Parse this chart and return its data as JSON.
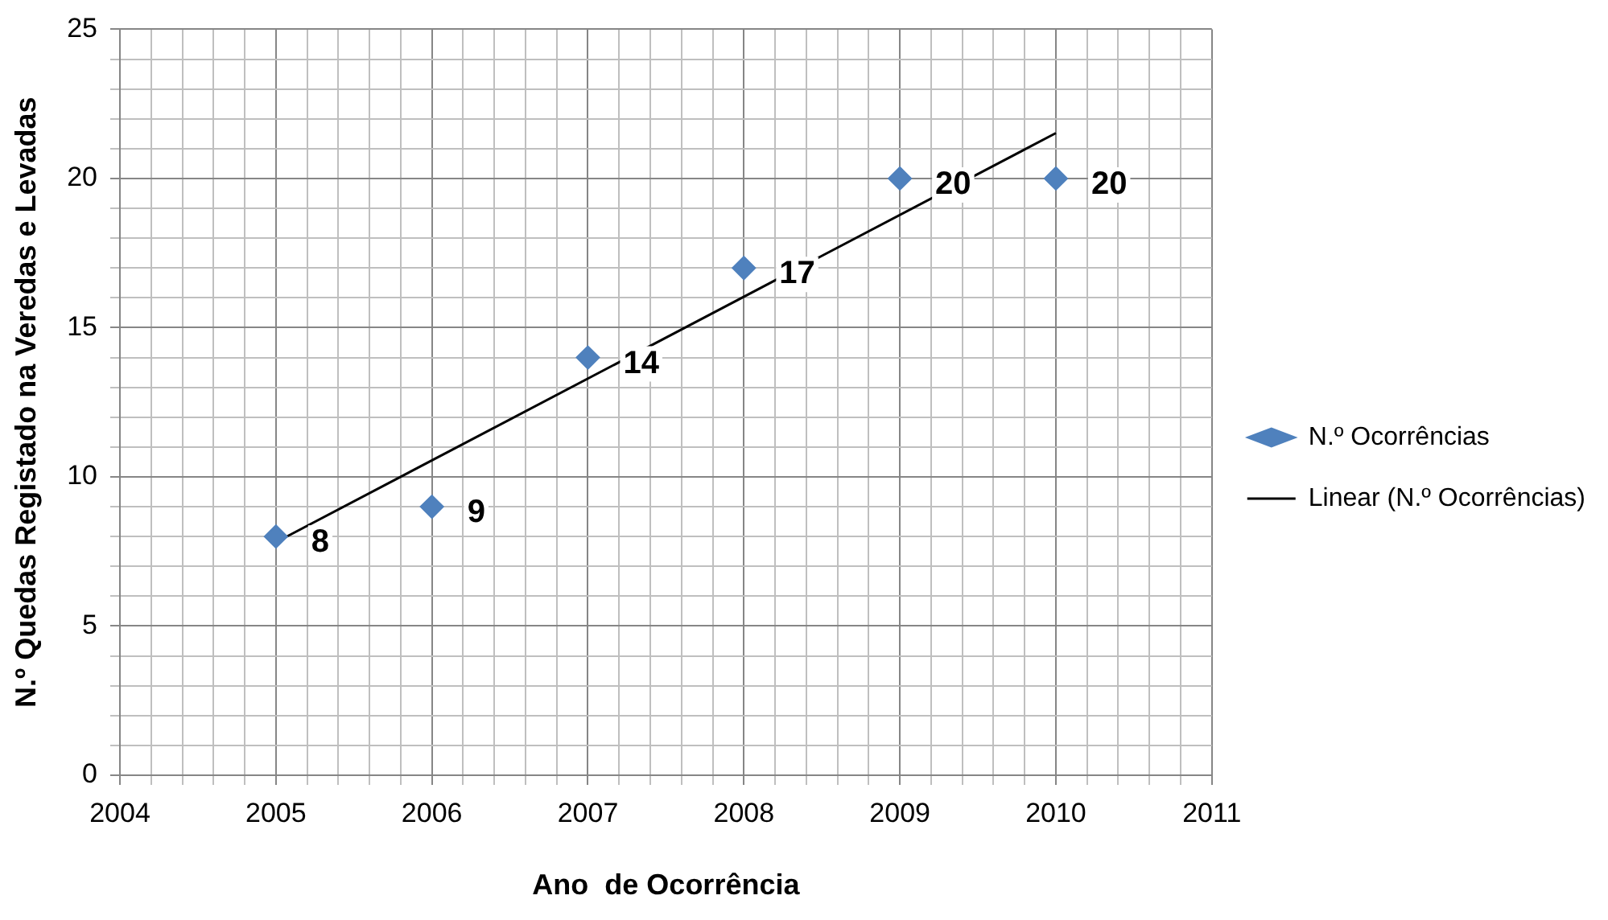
{
  "chart_data": {
    "type": "scatter",
    "xlabel": "Ano  de Ocorrência",
    "ylabel": "N.º Quedas Registado na Veredas e Levadas",
    "xlim": [
      2004,
      2011
    ],
    "xticks": [
      2004,
      {
        "value": 2004.2,
        "label": null
      },
      {
        "value": 2004.4,
        "label": null
      },
      {
        "value": 2004.6,
        "label": null
      },
      {
        "value": 2004.8,
        "label": null
      },
      2005,
      {
        "value": 2005.2,
        "label": null
      },
      {
        "value": 2005.4,
        "label": null
      },
      {
        "value": 2005.6,
        "label": null
      },
      {
        "value": 2005.8,
        "label": null
      },
      2006,
      {
        "value": 2006.2,
        "label": null
      },
      {
        "value": 2006.4,
        "label": null
      },
      {
        "value": 2006.6,
        "label": null
      },
      {
        "value": 2006.8,
        "label": null
      },
      2007,
      {
        "value": 2007.2,
        "label": null
      },
      {
        "value": 2007.4,
        "label": null
      },
      {
        "value": 2007.6,
        "label": null
      },
      {
        "value": 2007.8,
        "label": null
      },
      2008,
      {
        "value": 2008.2,
        "label": null
      },
      {
        "value": 2008.4,
        "label": null
      },
      {
        "value": 2008.6,
        "label": null
      },
      {
        "value": 2008.8,
        "label": null
      },
      2009,
      {
        "value": 2009.2,
        "label": null
      },
      {
        "value": 2009.4,
        "label": null
      },
      {
        "value": 2009.6,
        "label": null
      },
      {
        "value": 2009.8,
        "label": null
      },
      2010,
      {
        "value": 2010.2,
        "label": null
      },
      {
        "value": 2010.4,
        "label": null
      },
      {
        "value": 2010.6,
        "label": null
      },
      {
        "value": 2010.8,
        "label": null
      },
      2011
    ],
    "ylim": [
      0,
      25
    ],
    "yticks": [
      0,
      {
        "value": 1,
        "label": null
      },
      {
        "value": 2,
        "label": null
      },
      {
        "value": 3,
        "label": null
      },
      {
        "value": 4,
        "label": null
      },
      5,
      {
        "value": 6,
        "label": null
      },
      {
        "value": 7,
        "label": null
      },
      {
        "value": 8,
        "label": null
      },
      {
        "value": 9,
        "label": null
      },
      10,
      {
        "value": 11,
        "label": null
      },
      {
        "value": 12,
        "label": null
      },
      {
        "value": 13,
        "label": null
      },
      {
        "value": 14,
        "label": null
      },
      15,
      {
        "value": 16,
        "label": null
      },
      {
        "value": 17,
        "label": null
      },
      {
        "value": 18,
        "label": null
      },
      {
        "value": 19,
        "label": null
      },
      20,
      {
        "value": 21,
        "label": null
      },
      {
        "value": 22,
        "label": null
      },
      {
        "value": 23,
        "label": null
      },
      {
        "value": 24,
        "label": null
      },
      25
    ],
    "grid": true,
    "legend": "right",
    "marker": "diamond",
    "series": [
      {
        "name": "N.º Ocorrências",
        "color": "#4f81bd",
        "x": [
          2005,
          2006,
          2007,
          2008,
          2009,
          2010
        ],
        "values": [
          8,
          9,
          14,
          17,
          20,
          20
        ],
        "value_labels": [
          "8",
          "9",
          "14",
          "17",
          "20",
          "20"
        ]
      },
      {
        "type": "line",
        "name": "Linear (N.º Ocorrências)",
        "color": "#000000",
        "marker": "none",
        "x": [
          2005,
          2010
        ],
        "values": [
          7.81,
          21.52
        ]
      }
    ]
  }
}
